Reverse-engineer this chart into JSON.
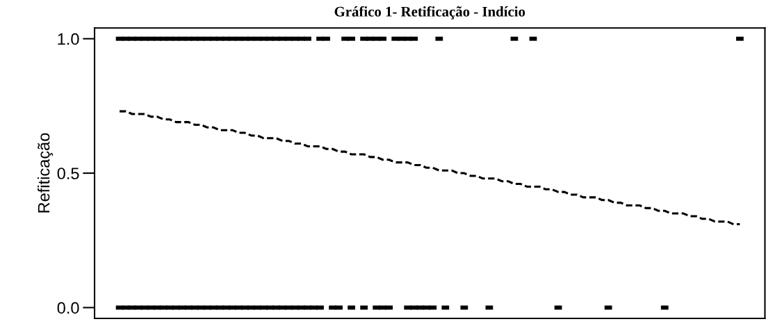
{
  "chart_data": {
    "type": "scatter",
    "title": "Gráfico 1- Retificação - Indício",
    "ylabel": "Refiticação",
    "categories": [
      null,
      null,
      null,
      null,
      null,
      null,
      null,
      null,
      null,
      null,
      null,
      null,
      null,
      null,
      null,
      null,
      null,
      null,
      null,
      null,
      null,
      null,
      null,
      null,
      null,
      null,
      null,
      null,
      null,
      null,
      null,
      null,
      null,
      null,
      null,
      null,
      null,
      null,
      null,
      null,
      null,
      null,
      null,
      null,
      null,
      null,
      null,
      null,
      null,
      null,
      null,
      null,
      null,
      null,
      null,
      null,
      null,
      null,
      null,
      null,
      null,
      null,
      null,
      null,
      null,
      null,
      null,
      null,
      null,
      null,
      null,
      null,
      null,
      null,
      null,
      null,
      null,
      null,
      null,
      null,
      null,
      null,
      null,
      null,
      null,
      null,
      null,
      null,
      null,
      null,
      null,
      null,
      null,
      null,
      null,
      null,
      null,
      null,
      null,
      null
    ],
    "series": [
      {
        "color": "#000000",
        "marker": "square",
        "values": [
          1,
          1,
          1,
          1,
          1,
          1,
          1,
          1,
          1,
          1,
          1,
          1,
          1,
          1,
          1,
          1,
          1,
          1,
          1,
          1,
          1,
          1,
          1,
          1,
          1,
          1,
          1,
          1,
          1,
          1,
          1,
          null,
          1,
          1,
          null,
          null,
          1,
          1,
          null,
          1,
          1,
          1,
          1,
          null,
          1,
          1,
          1,
          1,
          null,
          null,
          null,
          1,
          null,
          null,
          null,
          null,
          null,
          null,
          null,
          null,
          null,
          null,
          null,
          1,
          null,
          null,
          1,
          null,
          null,
          null,
          null,
          null,
          null,
          null,
          null,
          null,
          null,
          null,
          null,
          null,
          null,
          null,
          null,
          null,
          null,
          null,
          null,
          null,
          null,
          null,
          null,
          null,
          null,
          null,
          null,
          null,
          null,
          null,
          null,
          1
        ]
      },
      {
        "color": "#000000",
        "marker": "square",
        "values": [
          0,
          0,
          0,
          0,
          0,
          0,
          0,
          0,
          0,
          0,
          0,
          0,
          0,
          0,
          0,
          0,
          0,
          0,
          0,
          0,
          0,
          0,
          0,
          0,
          0,
          0,
          0,
          0,
          0,
          0,
          0,
          0,
          0,
          null,
          0,
          0,
          null,
          0,
          null,
          0,
          null,
          0,
          0,
          0,
          null,
          null,
          0,
          0,
          0,
          0,
          0,
          null,
          0,
          null,
          null,
          0,
          null,
          null,
          null,
          0,
          null,
          null,
          null,
          null,
          null,
          null,
          null,
          null,
          null,
          null,
          0,
          null,
          null,
          null,
          null,
          null,
          null,
          null,
          0,
          null,
          null,
          null,
          null,
          null,
          null,
          null,
          null,
          0,
          null,
          null,
          null,
          null,
          null,
          null,
          null,
          null,
          null,
          null,
          null,
          null
        ]
      },
      {
        "type": "line",
        "color": "#000000",
        "marker": "none",
        "line_style": "dashed",
        "values": [
          0.73,
          0.73,
          0.72,
          0.72,
          0.72,
          0.71,
          0.71,
          0.7,
          0.7,
          0.69,
          0.69,
          0.69,
          0.68,
          0.68,
          0.67,
          0.67,
          0.66,
          0.66,
          0.66,
          0.65,
          0.65,
          0.64,
          0.64,
          0.63,
          0.63,
          0.63,
          0.62,
          0.62,
          0.61,
          0.61,
          0.6,
          0.6,
          0.6,
          0.59,
          0.59,
          0.58,
          0.58,
          0.57,
          0.57,
          0.57,
          0.56,
          0.56,
          0.55,
          0.55,
          0.54,
          0.54,
          0.54,
          0.53,
          0.53,
          0.52,
          0.52,
          0.51,
          0.51,
          0.51,
          0.5,
          0.5,
          0.49,
          0.49,
          0.48,
          0.48,
          0.48,
          0.47,
          0.47,
          0.46,
          0.46,
          0.45,
          0.45,
          0.45,
          0.44,
          0.44,
          0.43,
          0.43,
          0.42,
          0.42,
          0.41,
          0.41,
          0.41,
          0.4,
          0.4,
          0.39,
          0.39,
          0.38,
          0.38,
          0.38,
          0.37,
          0.37,
          0.36,
          0.36,
          0.35,
          0.35,
          0.35,
          0.34,
          0.34,
          0.33,
          0.33,
          0.32,
          0.32,
          0.32,
          0.31,
          0.31
        ]
      }
    ],
    "ylim": [
      -0.04,
      1.04
    ],
    "yticks": [
      {
        "value": 0,
        "label": "0.0"
      },
      {
        "value": 0.5,
        "label": "0.5"
      },
      {
        "value": 1,
        "label": "1.0"
      }
    ],
    "tick_labels": "y",
    "grid": false
  }
}
